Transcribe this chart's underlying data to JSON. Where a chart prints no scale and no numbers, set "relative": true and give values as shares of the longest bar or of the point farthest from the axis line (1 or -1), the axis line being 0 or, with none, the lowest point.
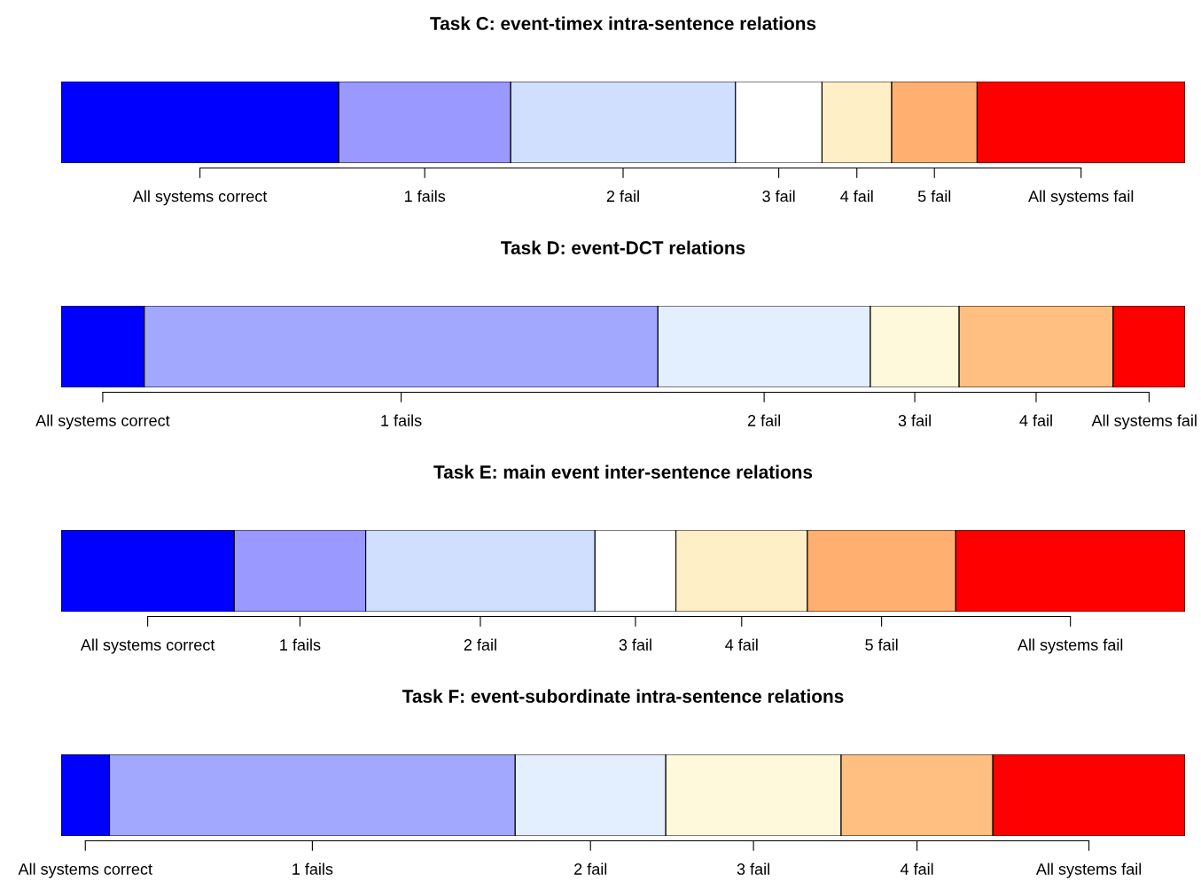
{
  "chart_data": [
    {
      "type": "bar",
      "legend": "bottom",
      "title": "Task C: event-timex intra-sentence relations",
      "orientation": "horizontal",
      "stacked": true,
      "relative": true,
      "categories": [
        null
      ],
      "series": [
        {
          "name": "All systems correct",
          "color": "#0000ff",
          "values": [
            0.247
          ]
        },
        {
          "name": "1 fails",
          "color": "#9999ff",
          "values": [
            0.153
          ]
        },
        {
          "name": "2 fail",
          "color": "#d1dfff",
          "values": [
            0.2
          ]
        },
        {
          "name": "3 fail",
          "color": "#ffffff",
          "values": [
            0.077
          ]
        },
        {
          "name": "4 fail",
          "color": "#ffefc6",
          "values": [
            0.062
          ]
        },
        {
          "name": "5 fail",
          "color": "#ffb070",
          "values": [
            0.076
          ]
        },
        {
          "name": "All systems fail",
          "color": "#ff0000",
          "values": [
            0.185
          ]
        }
      ]
    },
    {
      "type": "bar",
      "legend": "bottom",
      "title": "Task D: event-DCT relations",
      "orientation": "horizontal",
      "stacked": true,
      "relative": true,
      "categories": [
        null
      ],
      "series": [
        {
          "name": "All systems correct",
          "color": "#0000ff",
          "values": [
            0.074
          ]
        },
        {
          "name": "1 fails",
          "color": "#a3a8ff",
          "values": [
            0.457
          ]
        },
        {
          "name": "2 fail",
          "color": "#e3eeff",
          "values": [
            0.189
          ]
        },
        {
          "name": "3 fail",
          "color": "#fff9dc",
          "values": [
            0.079
          ]
        },
        {
          "name": "4 fail",
          "color": "#ffbf80",
          "values": [
            0.137
          ]
        },
        {
          "name": "All systems fail",
          "color": "#ff0000",
          "values": [
            0.064
          ]
        }
      ]
    },
    {
      "type": "bar",
      "legend": "bottom",
      "title": "Task E: main event inter-sentence relations",
      "orientation": "horizontal",
      "stacked": true,
      "relative": true,
      "categories": [
        null
      ],
      "series": [
        {
          "name": "All systems correct",
          "color": "#0000ff",
          "values": [
            0.154
          ]
        },
        {
          "name": "1 fails",
          "color": "#9999ff",
          "values": [
            0.117
          ]
        },
        {
          "name": "2 fail",
          "color": "#d1dfff",
          "values": [
            0.204
          ]
        },
        {
          "name": "3 fail",
          "color": "#ffffff",
          "values": [
            0.072
          ]
        },
        {
          "name": "4 fail",
          "color": "#ffefc6",
          "values": [
            0.117
          ]
        },
        {
          "name": "5 fail",
          "color": "#ffb070",
          "values": [
            0.132
          ]
        },
        {
          "name": "All systems fail",
          "color": "#ff0000",
          "values": [
            0.204
          ]
        }
      ]
    },
    {
      "type": "bar",
      "legend": "bottom",
      "title": "Task F: event-subordinate intra-sentence relations",
      "orientation": "horizontal",
      "stacked": true,
      "relative": true,
      "categories": [
        null
      ],
      "series": [
        {
          "name": "All systems correct",
          "color": "#0000ff",
          "values": [
            0.043
          ]
        },
        {
          "name": "1 fails",
          "color": "#a3a8ff",
          "values": [
            0.361
          ]
        },
        {
          "name": "2 fail",
          "color": "#e3eeff",
          "values": [
            0.134
          ]
        },
        {
          "name": "3 fail",
          "color": "#fff9dc",
          "values": [
            0.156
          ]
        },
        {
          "name": "4 fail",
          "color": "#ffbf80",
          "values": [
            0.135
          ]
        },
        {
          "name": "All systems fail",
          "color": "#ff0000",
          "values": [
            0.171
          ]
        }
      ]
    }
  ]
}
